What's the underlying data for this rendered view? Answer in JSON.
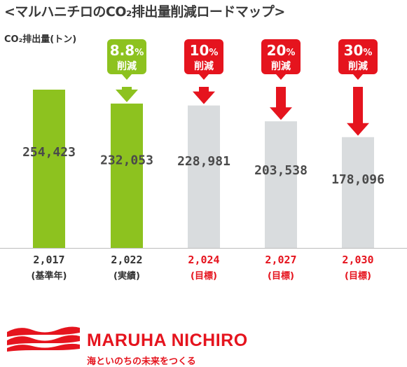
{
  "page": {
    "title": "<マルハニチロのCO₂排出量削減ロードマップ>",
    "unit": "CO₂排出量(トン)"
  },
  "chart_data": {
    "type": "bar",
    "title": "<マルハニチロのCO₂排出量削減ロードマップ>",
    "ylabel": "CO₂排出量(トン)",
    "categories": [
      "2,017",
      "2,022",
      "2,024",
      "2,027",
      "2,030"
    ],
    "sublabels": [
      "(基準年)",
      "(実績)",
      "(目標)",
      "(目標)",
      "(目標)"
    ],
    "values": [
      254423,
      232053,
      228981,
      203538,
      178096
    ],
    "value_labels": [
      "254,423",
      "232,053",
      "228,981",
      "203,538",
      "178,096"
    ],
    "callouts": [
      null,
      {
        "pct": "8.8",
        "unit": "%",
        "text": "削減"
      },
      {
        "pct": "10",
        "unit": "%",
        "text": "削減"
      },
      {
        "pct": "20",
        "unit": "%",
        "text": "削減"
      },
      {
        "pct": "30",
        "unit": "%",
        "text": "削減"
      }
    ],
    "kinds": [
      "actual",
      "actual",
      "target",
      "target",
      "target"
    ],
    "ylim": [
      0,
      254423
    ],
    "colors": {
      "actual": "#8dc21f",
      "target": "#d9dcde",
      "red": "#e5141e",
      "value_text": "#4a4a4a",
      "axis_text": "#333333"
    }
  },
  "brand": {
    "name": "MARUHA NICHIRO",
    "tagline": "海といのちの未来をつくる"
  }
}
